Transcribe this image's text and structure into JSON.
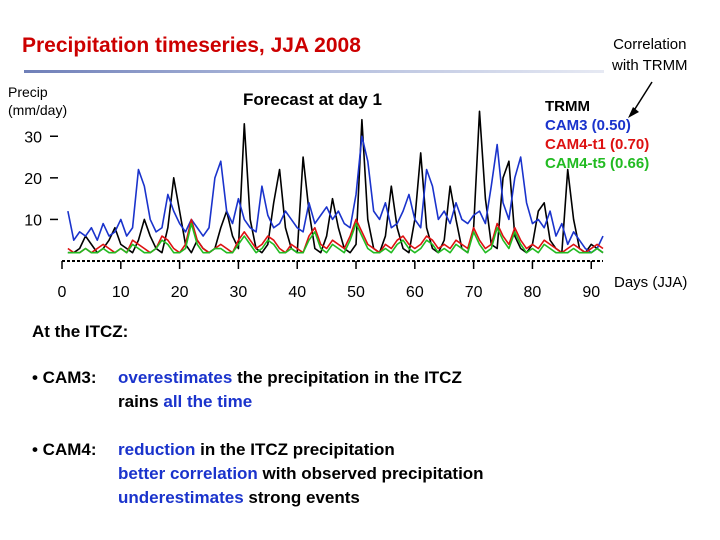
{
  "slide": {
    "title": "Precipitation timeseries, JJA 2008",
    "ylabel": "Precip\n(mm/day)",
    "subtitle": "Forecast at day 1",
    "corr_note": "Correlation\nwith TRMM",
    "xlabel": "Days (JJA)"
  },
  "legend": [
    {
      "label": "TRMM",
      "color": "#000000"
    },
    {
      "label": "CAM3 (0.50)",
      "color": "#1a33cc"
    },
    {
      "label": "CAM4-t1 (0.70)",
      "color": "#dd1111"
    },
    {
      "label": "CAM4-t5 (0.66)",
      "color": "#22bb22"
    }
  ],
  "notes": {
    "heading": "At the ITCZ:",
    "cam3": {
      "lead": "• CAM3:",
      "line1_a": "overestimates",
      "line1_b": " the precipitation in the ITCZ",
      "line2_a": "rains ",
      "line2_b": "all the time"
    },
    "cam4": {
      "lead": "• CAM4:",
      "line1_a": "reduction",
      "line1_b": " in the ITCZ precipitation",
      "line2_a": "better correlation",
      "line2_b": " with observed precipitation",
      "line3_a": "underestimates",
      "line3_b": " strong events"
    }
  },
  "chart_data": {
    "type": "line",
    "title": "Precipitation timeseries, JJA 2008",
    "subtitle": "Forecast at day 1",
    "xlabel": "Days (JJA)",
    "ylabel": "Precip (mm/day)",
    "xlim": [
      0,
      92
    ],
    "ylim": [
      0,
      38
    ],
    "xticks": [
      0,
      10,
      20,
      30,
      40,
      50,
      60,
      70,
      80,
      90
    ],
    "yticks": [
      10,
      20,
      30
    ],
    "grid": false,
    "legend_position": "top-right",
    "series": [
      {
        "name": "TRMM",
        "color": "#000000",
        "values": [
          2,
          2,
          3,
          6,
          4,
          2,
          3,
          5,
          8,
          4,
          3,
          2,
          5,
          10,
          6,
          3,
          2,
          8,
          20,
          12,
          4,
          2,
          5,
          3,
          2,
          3,
          8,
          12,
          6,
          3,
          33,
          10,
          3,
          2,
          4,
          14,
          22,
          8,
          3,
          2,
          25,
          12,
          3,
          2,
          6,
          15,
          8,
          3,
          2,
          4,
          34,
          10,
          3,
          2,
          6,
          18,
          8,
          3,
          2,
          10,
          26,
          8,
          3,
          2,
          5,
          18,
          10,
          3,
          2,
          8,
          36,
          15,
          4,
          3,
          20,
          24,
          6,
          3,
          2,
          4,
          12,
          14,
          5,
          3,
          2,
          22,
          10,
          3,
          2,
          4,
          3,
          2
        ]
      },
      {
        "name": "CAM3",
        "color": "#1a33cc",
        "values": [
          12,
          5,
          7,
          6,
          8,
          5,
          9,
          6,
          7,
          10,
          6,
          8,
          22,
          18,
          10,
          7,
          8,
          16,
          12,
          9,
          7,
          10,
          8,
          6,
          8,
          20,
          24,
          12,
          9,
          15,
          10,
          8,
          7,
          18,
          11,
          8,
          9,
          12,
          10,
          8,
          7,
          14,
          9,
          11,
          13,
          10,
          12,
          9,
          8,
          16,
          30,
          24,
          12,
          10,
          14,
          8,
          9,
          12,
          16,
          10,
          8,
          22,
          18,
          10,
          12,
          9,
          14,
          10,
          9,
          11,
          12,
          9,
          18,
          28,
          14,
          10,
          20,
          25,
          14,
          9,
          10,
          8,
          12,
          6,
          9,
          4,
          7,
          5,
          3,
          2,
          3,
          6
        ]
      },
      {
        "name": "CAM4-t1",
        "color": "#dd1111",
        "values": [
          3,
          2,
          2,
          3,
          2,
          3,
          4,
          3,
          2,
          3,
          2,
          5,
          4,
          3,
          2,
          3,
          6,
          5,
          3,
          2,
          4,
          10,
          5,
          3,
          2,
          3,
          4,
          3,
          2,
          5,
          7,
          5,
          3,
          4,
          6,
          5,
          3,
          2,
          4,
          3,
          2,
          6,
          8,
          4,
          3,
          5,
          4,
          3,
          6,
          10,
          7,
          4,
          3,
          2,
          4,
          3,
          5,
          6,
          4,
          3,
          4,
          6,
          5,
          3,
          4,
          3,
          5,
          4,
          3,
          8,
          5,
          3,
          4,
          9,
          6,
          4,
          8,
          5,
          3,
          4,
          3,
          5,
          4,
          3,
          2,
          3,
          4,
          3,
          2,
          3,
          4,
          3
        ]
      },
      {
        "name": "CAM4-t5",
        "color": "#22bb22",
        "values": [
          2,
          2,
          2,
          3,
          2,
          2,
          3,
          2,
          2,
          3,
          2,
          4,
          3,
          2,
          2,
          3,
          5,
          4,
          2,
          2,
          3,
          9,
          4,
          2,
          2,
          3,
          3,
          2,
          2,
          4,
          6,
          4,
          2,
          3,
          5,
          4,
          2,
          2,
          3,
          2,
          2,
          5,
          7,
          3,
          2,
          4,
          3,
          2,
          5,
          9,
          6,
          3,
          2,
          2,
          3,
          2,
          4,
          5,
          3,
          2,
          3,
          5,
          4,
          2,
          3,
          2,
          4,
          3,
          2,
          7,
          4,
          2,
          3,
          8,
          5,
          3,
          7,
          4,
          2,
          3,
          2,
          4,
          3,
          2,
          2,
          2,
          3,
          2,
          2,
          2,
          3,
          2
        ]
      }
    ]
  }
}
